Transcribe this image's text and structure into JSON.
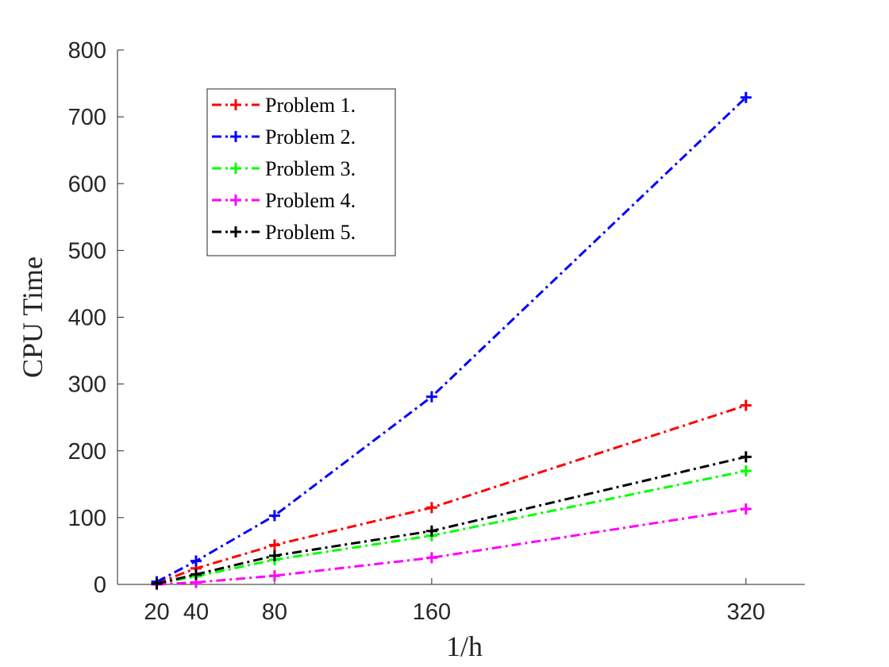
{
  "chart_data": {
    "type": "line",
    "title": "",
    "xlabel": "1/h",
    "ylabel": "CPU Time",
    "x": [
      20,
      40,
      80,
      160,
      320
    ],
    "xticks": [
      "20",
      "40",
      "80",
      "160",
      "320"
    ],
    "yticks": [
      "0",
      "100",
      "200",
      "300",
      "400",
      "500",
      "600",
      "700",
      "800"
    ],
    "xlim": [
      0,
      350
    ],
    "ylim": [
      0,
      800
    ],
    "grid": false,
    "legend_position": "top-left",
    "marker": "+",
    "line_style": "dash-dot",
    "series": [
      {
        "name": "Problem 1.",
        "color": "#ff0000",
        "values": [
          2,
          24,
          59,
          115,
          268
        ]
      },
      {
        "name": "Problem 2.",
        "color": "#0000ff",
        "values": [
          4,
          35,
          103,
          281,
          729
        ]
      },
      {
        "name": "Problem 3.",
        "color": "#00ff00",
        "values": [
          1,
          12,
          37,
          73,
          170
        ]
      },
      {
        "name": "Problem 4.",
        "color": "#ff00ff",
        "values": [
          0,
          3,
          13,
          40,
          113
        ]
      },
      {
        "name": "Problem 5.",
        "color": "#000000",
        "values": [
          1,
          15,
          43,
          80,
          191
        ]
      }
    ]
  }
}
